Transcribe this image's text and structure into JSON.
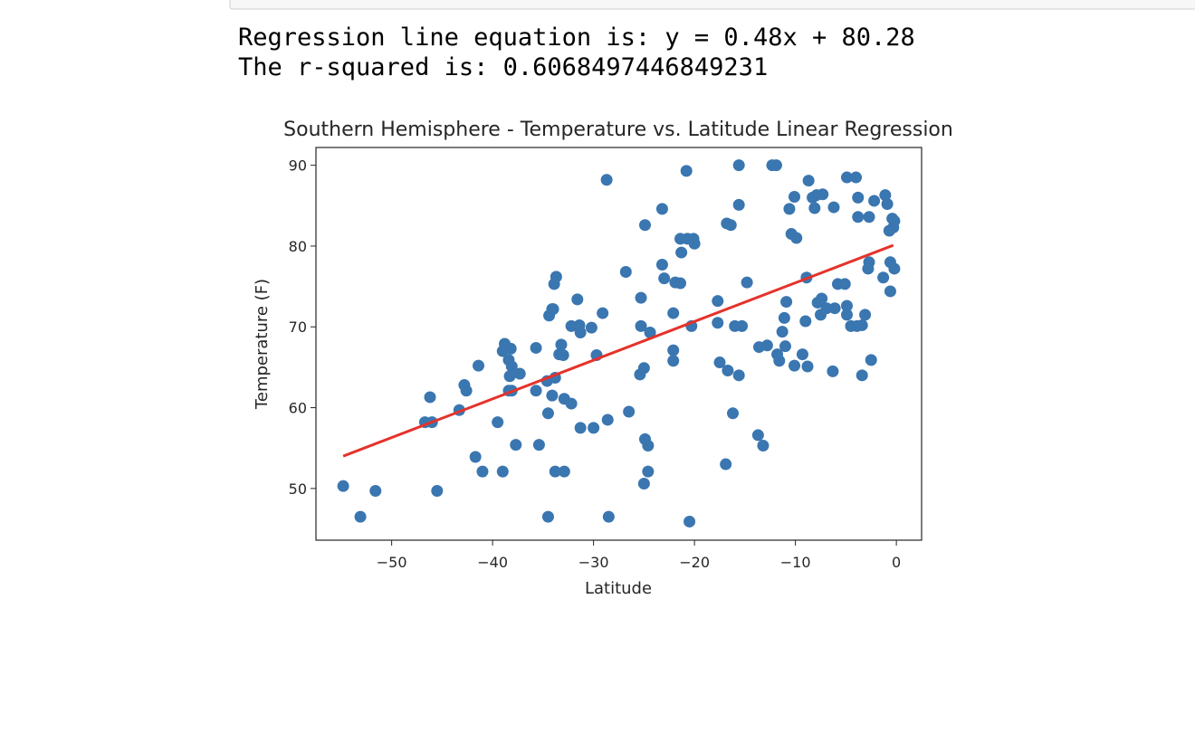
{
  "output": {
    "lines": [
      "Regression line equation is: y = 0.48x + 80.28",
      "The r-squared is: 0.6068497446849231"
    ]
  },
  "chart_data": {
    "type": "scatter",
    "title": "Southern Hemisphere - Temperature vs. Latitude Linear Regression",
    "x_label": "Latitude",
    "y_label": "Temperature (F)",
    "xlim": [
      -57.5,
      2.5
    ],
    "ylim": [
      43.6,
      92.2
    ],
    "xticks": [
      {
        "value": -50,
        "label": "−50"
      },
      {
        "value": -40,
        "label": "−40"
      },
      {
        "value": -30,
        "label": "−30"
      },
      {
        "value": -20,
        "label": "−20"
      },
      {
        "value": -10,
        "label": "−10"
      },
      0
    ],
    "yticks": [
      50,
      60,
      70,
      80,
      90
    ],
    "grid": false,
    "series": [
      {
        "color": "#3a76b0",
        "x": [
          -54.8,
          -53.1,
          -51.6,
          -46.2,
          -46.7,
          -46.0,
          -45.5,
          -43.3,
          -42.8,
          -42.6,
          -41.4,
          -41.7,
          -41.0,
          -39.5,
          -39.0,
          -38.8,
          -39.0,
          -38.2,
          -38.4,
          -38.1,
          -38.3,
          -37.3,
          -38.4,
          -38.1,
          -37.7,
          -35.7,
          -35.7,
          -35.4,
          -33.7,
          -33.9,
          -34.1,
          -34.4,
          -34.0,
          -33.2,
          -33.4,
          -33.0,
          -34.6,
          -33.8,
          -34.1,
          -32.9,
          -32.2,
          -34.5,
          -33.8,
          -32.9,
          -34.5,
          -31.6,
          -32.2,
          -31.4,
          -31.3,
          -30.2,
          -29.1,
          -31.3,
          -30.0,
          -29.7,
          -28.6,
          -28.7,
          -28.5,
          -26.8,
          -26.5,
          -25.3,
          -25.3,
          -24.4,
          -25.4,
          -25.0,
          -24.9,
          -24.6,
          -24.6,
          -25.0,
          -24.9,
          -23.2,
          -23.2,
          -23.0,
          -21.9,
          -21.4,
          -22.1,
          -22.1,
          -22.1,
          -21.4,
          -20.7,
          -20.1,
          -20.0,
          -21.3,
          -20.8,
          -20.3,
          -20.5,
          -17.7,
          -17.7,
          -17.5,
          -16.8,
          -16.4,
          -16.7,
          -16.9,
          -16.2,
          -15.6,
          -15.6,
          -16.0,
          -15.3,
          -15.6,
          -14.8,
          -13.6,
          -12.8,
          -13.7,
          -13.2,
          -12.3,
          -11.9,
          -11.8,
          -11.6,
          -11.3,
          -11.0,
          -11.1,
          -10.9,
          -10.6,
          -10.1,
          -10.4,
          -9.9,
          -10.1,
          -9.3,
          -8.8,
          -9.0,
          -8.9,
          -8.7,
          -8.3,
          -7.9,
          -7.3,
          -8.1,
          -7.8,
          -7.4,
          -7.5,
          -6.9,
          -6.2,
          -6.1,
          -6.3,
          -5.8,
          -5.1,
          -4.9,
          -4.0,
          -4.9,
          -4.9,
          -4.5,
          -3.9,
          -3.8,
          -3.8,
          -3.4,
          -3.1,
          -3.4,
          -2.7,
          -2.7,
          -2.8,
          -2.5,
          -2.2,
          -1.1,
          -0.9,
          -0.4,
          -0.3,
          -0.7,
          -0.2,
          -1.3,
          -0.6,
          -0.2,
          -0.6
        ],
        "values": [
          50.3,
          46.5,
          49.7,
          61.3,
          58.2,
          58.2,
          49.7,
          59.7,
          62.8,
          62.1,
          65.2,
          53.9,
          52.1,
          58.2,
          52.1,
          67.9,
          67.0,
          67.3,
          65.9,
          65.1,
          63.9,
          64.2,
          62.1,
          62.1,
          55.4,
          67.4,
          62.1,
          55.4,
          76.2,
          75.3,
          72.2,
          71.4,
          72.2,
          67.8,
          66.6,
          66.5,
          63.3,
          63.7,
          61.5,
          61.1,
          60.5,
          59.3,
          52.1,
          52.1,
          46.5,
          73.4,
          70.1,
          70.2,
          69.3,
          69.9,
          71.7,
          57.5,
          57.5,
          66.5,
          58.5,
          88.2,
          46.5,
          76.8,
          59.5,
          73.6,
          70.1,
          69.3,
          64.1,
          64.9,
          56.1,
          55.3,
          52.1,
          50.6,
          82.6,
          84.6,
          77.7,
          76.0,
          75.5,
          75.4,
          71.7,
          67.1,
          65.8,
          80.9,
          80.9,
          80.9,
          80.3,
          79.2,
          89.3,
          70.1,
          45.9,
          73.2,
          70.5,
          65.6,
          82.8,
          82.6,
          64.6,
          53.0,
          59.3,
          90.0,
          85.1,
          70.1,
          70.1,
          64.0,
          75.5,
          67.5,
          67.7,
          56.6,
          55.3,
          90.0,
          90.0,
          66.6,
          65.8,
          69.4,
          67.6,
          71.1,
          73.1,
          84.6,
          86.1,
          81.5,
          81.0,
          65.2,
          66.6,
          65.1,
          70.7,
          76.1,
          88.1,
          86.0,
          86.3,
          86.4,
          84.7,
          73.0,
          73.5,
          71.5,
          72.3,
          84.8,
          72.3,
          64.5,
          75.3,
          75.3,
          88.5,
          88.5,
          72.6,
          71.5,
          70.1,
          70.1,
          86.0,
          83.6,
          70.2,
          71.5,
          64.0,
          83.6,
          78.0,
          77.2,
          65.9,
          85.6,
          86.3,
          85.2,
          83.4,
          82.3,
          81.9,
          83.1,
          76.1,
          78.0,
          77.2,
          74.4
        ]
      },
      {
        "type": "line",
        "color": "#e5322a",
        "x": [
          -54.8,
          -0.3
        ],
        "values": [
          54.0,
          80.1
        ]
      }
    ]
  }
}
